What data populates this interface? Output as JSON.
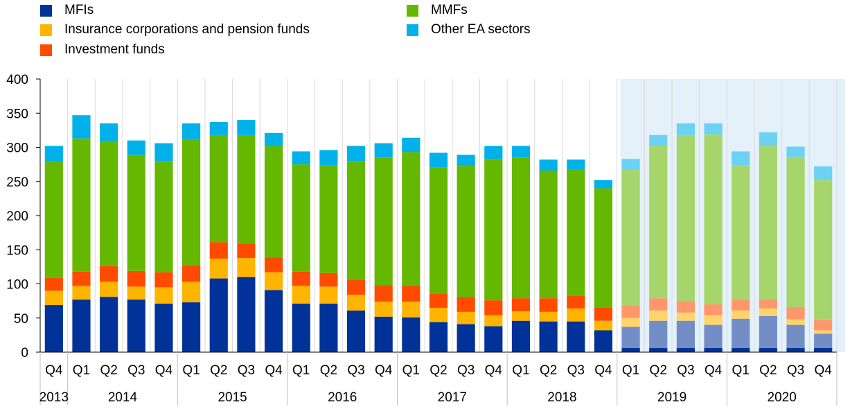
{
  "chart_data": {
    "type": "bar",
    "stacked": true,
    "title": "",
    "xlabel": "",
    "ylabel": "",
    "ylim": [
      0,
      400
    ],
    "yticks": [
      0,
      50,
      100,
      150,
      200,
      250,
      300,
      350,
      400
    ],
    "grid": "vertical separators between quarters",
    "legend_position": "top",
    "categories": [
      "Q4",
      "Q1",
      "Q2",
      "Q3",
      "Q4",
      "Q1",
      "Q2",
      "Q3",
      "Q4",
      "Q1",
      "Q2",
      "Q3",
      "Q4",
      "Q1",
      "Q2",
      "Q3",
      "Q4",
      "Q1",
      "Q2",
      "Q3",
      "Q4",
      "Q1",
      "Q2",
      "Q3",
      "Q4",
      "Q1",
      "Q2",
      "Q3",
      "Q4"
    ],
    "year_groups": [
      {
        "label": "2013",
        "start": 0,
        "end": 0
      },
      {
        "label": "2014",
        "start": 1,
        "end": 4
      },
      {
        "label": "2015",
        "start": 5,
        "end": 8
      },
      {
        "label": "2016",
        "start": 9,
        "end": 12
      },
      {
        "label": "2017",
        "start": 13,
        "end": 16
      },
      {
        "label": "2018",
        "start": 17,
        "end": 20
      },
      {
        "label": "2019",
        "start": 21,
        "end": 24
      },
      {
        "label": "2020",
        "start": 25,
        "end": 28
      }
    ],
    "highlight_from_index": 21,
    "series": [
      {
        "name": "MFIs",
        "color": "#003299",
        "values": [
          69,
          77,
          81,
          77,
          71,
          73,
          108,
          110,
          91,
          71,
          71,
          61,
          52,
          51,
          44,
          41,
          38,
          46,
          45,
          45,
          32,
          37,
          46,
          46,
          40,
          49,
          53,
          40,
          27
        ]
      },
      {
        "name": "Insurance corporations and pension funds",
        "color": "#FFB400",
        "values": [
          21,
          20,
          22,
          19,
          24,
          30,
          29,
          28,
          26,
          26,
          25,
          23,
          22,
          23,
          21,
          18,
          16,
          14,
          14,
          19,
          14,
          13,
          15,
          12,
          14,
          12,
          11,
          8,
          5
        ]
      },
      {
        "name": "Investment funds",
        "color": "#FF4B00",
        "values": [
          19,
          21,
          23,
          23,
          22,
          24,
          24,
          21,
          22,
          21,
          20,
          22,
          24,
          23,
          21,
          22,
          22,
          19,
          20,
          19,
          19,
          18,
          18,
          17,
          16,
          16,
          14,
          18,
          15
        ]
      },
      {
        "name": "MMFs",
        "color": "#65B800",
        "values": [
          170,
          195,
          183,
          170,
          163,
          185,
          157,
          159,
          163,
          157,
          158,
          174,
          187,
          196,
          185,
          192,
          207,
          206,
          187,
          185,
          175,
          200,
          224,
          243,
          249,
          197,
          224,
          220,
          205
        ]
      },
      {
        "name": "Other EA sectors",
        "color": "#00B1EA",
        "values": [
          23,
          34,
          26,
          21,
          26,
          23,
          19,
          22,
          19,
          19,
          22,
          22,
          21,
          21,
          21,
          16,
          19,
          17,
          16,
          14,
          12,
          15,
          15,
          17,
          16,
          20,
          20,
          15,
          20
        ]
      }
    ],
    "legend_order": [
      "MFIs",
      "MMFs",
      "Insurance corporations and pension funds",
      "Other EA sectors",
      "Investment funds"
    ]
  }
}
